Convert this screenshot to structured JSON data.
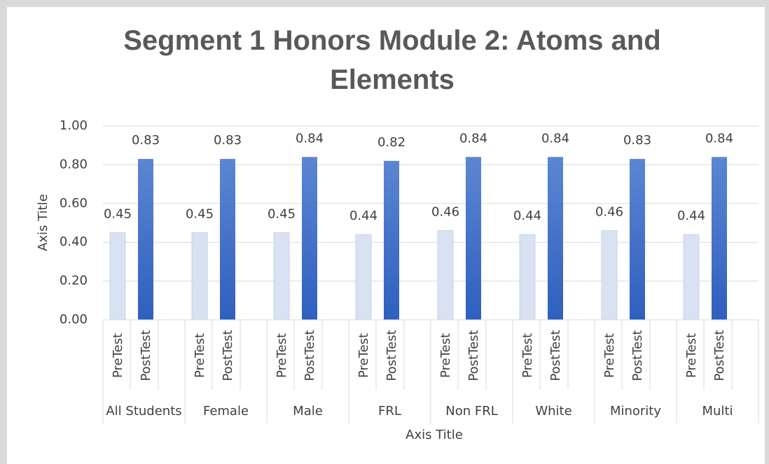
{
  "chart_data": {
    "type": "bar",
    "title": "Segment 1 Honors Module 2: Atoms and Elements",
    "x_label": "Axis Title",
    "y_label": "Axis Title",
    "categories": [
      "All Students",
      "Female",
      "Male",
      "FRL",
      "Non FRL",
      "White",
      "Minority",
      "Multi"
    ],
    "series": [
      {
        "name": "PreTest",
        "color": "#d9e2f3",
        "values": [
          0.45,
          0.45,
          0.45,
          0.44,
          0.46,
          0.44,
          0.46,
          0.44
        ]
      },
      {
        "name": "PostTest",
        "color": "#4472c4",
        "values": [
          0.83,
          0.83,
          0.84,
          0.82,
          0.84,
          0.84,
          0.83,
          0.84
        ]
      }
    ],
    "ylim": [
      0,
      1
    ],
    "yticks": [
      {
        "value": 0,
        "label": "0.00"
      },
      {
        "value": 0.2,
        "label": "0.20"
      },
      {
        "value": 0.4,
        "label": "0.40"
      },
      {
        "value": 0.6,
        "label": "0.60"
      },
      {
        "value": 0.8,
        "label": "0.80"
      },
      {
        "value": 1,
        "label": "1.00"
      }
    ],
    "grid": true
  }
}
